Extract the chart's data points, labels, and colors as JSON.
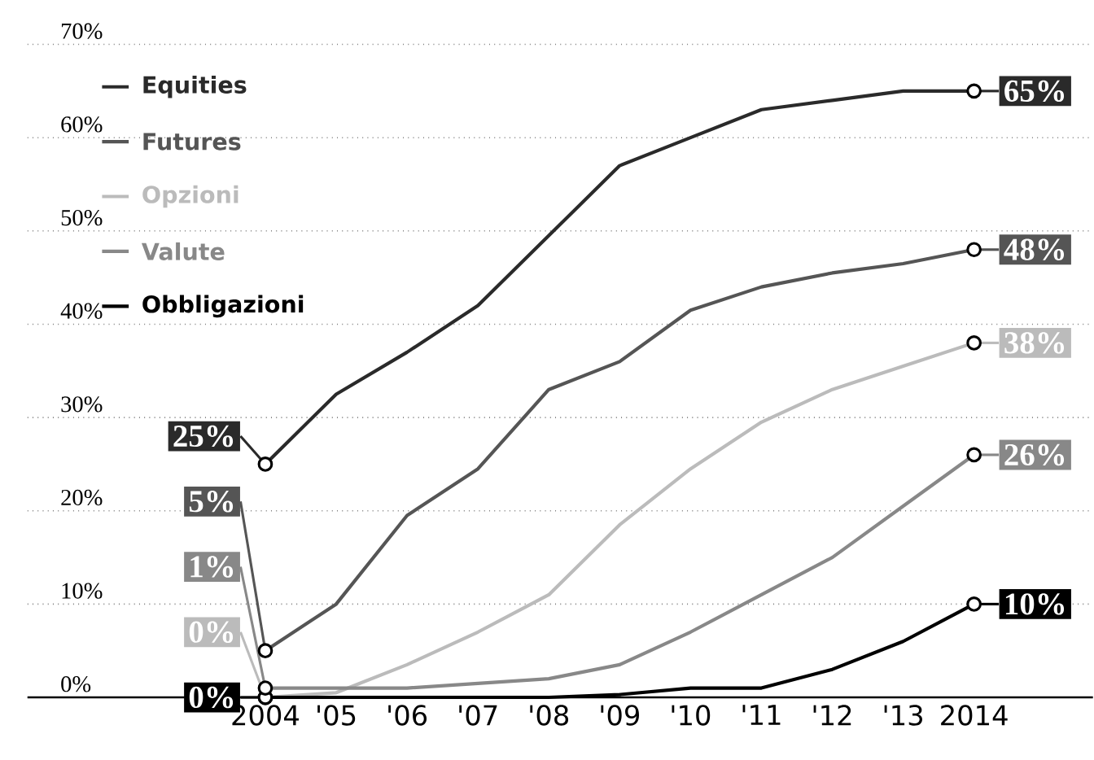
{
  "chart_data": {
    "type": "line",
    "categories": [
      "2004",
      "'05",
      "'06",
      "'07",
      "'08",
      "'09",
      "'10",
      "'11",
      "'12",
      "'13",
      "2014"
    ],
    "series": [
      {
        "name": "Equities",
        "color": "#2a2a2a",
        "values": [
          25,
          32.5,
          37,
          42,
          49.5,
          57,
          60,
          63,
          64,
          65,
          65
        ],
        "value_labels": [
          "25%",
          null,
          null,
          null,
          null,
          null,
          null,
          null,
          null,
          null,
          "65%"
        ]
      },
      {
        "name": "Futures",
        "color": "#555555",
        "values": [
          5,
          10,
          19.5,
          24.5,
          33,
          36,
          41.5,
          44,
          45.5,
          46.5,
          48
        ],
        "value_labels": [
          "5%",
          null,
          null,
          null,
          null,
          null,
          null,
          null,
          null,
          null,
          "48%"
        ]
      },
      {
        "name": "Opzioni",
        "color": "#bbbbbb",
        "values": [
          0,
          0.5,
          3.5,
          7,
          11,
          18.5,
          24.5,
          29.5,
          33,
          35.5,
          38
        ],
        "value_labels": [
          "0%",
          null,
          null,
          null,
          null,
          null,
          null,
          null,
          null,
          null,
          "38%"
        ]
      },
      {
        "name": "Valute",
        "color": "#888888",
        "values": [
          1,
          1,
          1,
          1.5,
          2,
          3.5,
          7,
          11,
          15,
          20.5,
          26
        ],
        "value_labels": [
          "1%",
          null,
          null,
          null,
          null,
          null,
          null,
          null,
          null,
          null,
          "26%"
        ]
      },
      {
        "name": "Obbligazioni",
        "color": "#000000",
        "values": [
          0,
          0,
          0,
          0,
          0,
          0.3,
          1,
          1,
          3,
          6,
          10
        ],
        "value_labels": [
          "0%",
          null,
          null,
          null,
          null,
          null,
          null,
          null,
          null,
          null,
          "10%"
        ]
      }
    ],
    "ylim": [
      0,
      70
    ],
    "yticks": [
      {
        "value": 0,
        "label": "0%"
      },
      {
        "value": 10,
        "label": "10%"
      },
      {
        "value": 20,
        "label": "20%"
      },
      {
        "value": 30,
        "label": "30%"
      },
      {
        "value": 40,
        "label": "40%"
      },
      {
        "value": 50,
        "label": "50%"
      },
      {
        "value": 60,
        "label": "60%"
      },
      {
        "value": 70,
        "label": "70%"
      }
    ],
    "grid": "y",
    "legend": "top left",
    "line_style": "solid"
  }
}
